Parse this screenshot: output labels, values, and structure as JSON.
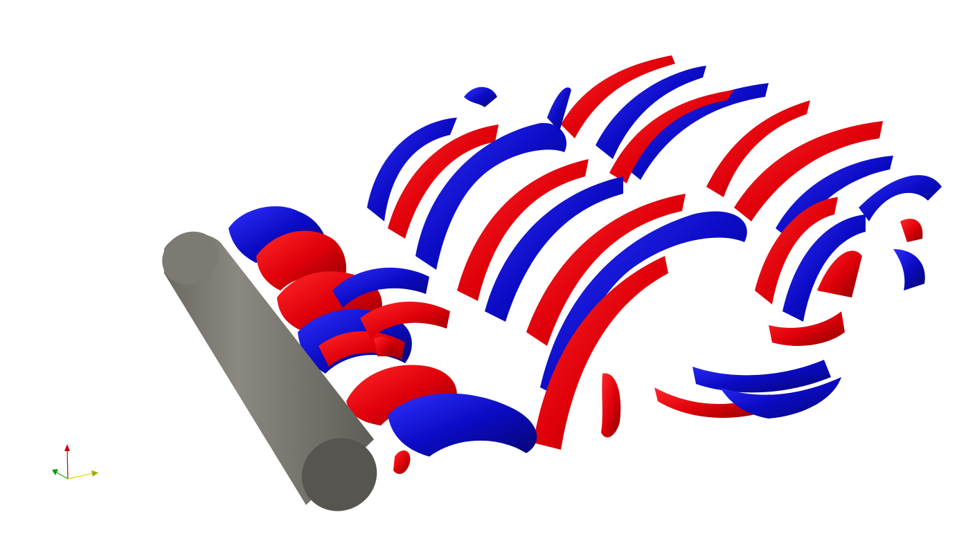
{
  "scene": {
    "background_color": "#ffffff",
    "object": "cylinder",
    "cylinder_color": "#7a7870",
    "cylinder_cap_color": "#56554f",
    "isosurface_colors": {
      "positive": "#e0000a",
      "negative": "#0b0bc4"
    }
  },
  "axes_triad": {
    "colors": {
      "x": "#d8d800",
      "y": "#d00000",
      "z": "#00c000"
    }
  }
}
